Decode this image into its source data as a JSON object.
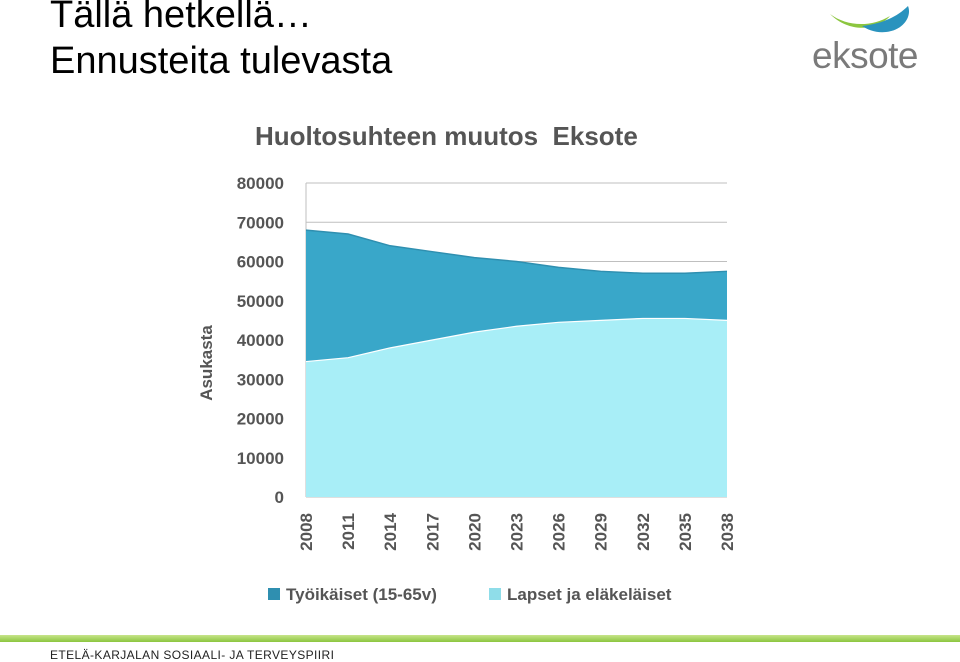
{
  "slide": {
    "title_line1": "Tällä hetkellä…",
    "title_line2": "Ennusteita tulevasta",
    "footer": "ETELÄ-KARJALAN SOSIAALI- JA TERVEYSPIIRI"
  },
  "logo": {
    "text": "eksote",
    "icon": "eksote-wave-logo"
  },
  "colors": {
    "working_age": "#39a7c9",
    "children_elderly": "#a8eef7",
    "footer_bar": "#8cc63f",
    "logo_green": "#8cc63f",
    "logo_blue": "#2a93be"
  },
  "chart_data": {
    "type": "area",
    "stacked": true,
    "title": "Huoltosuhteen muutos  Eksote",
    "ylabel": "Asukasta",
    "xlabel": "",
    "ylim": [
      0,
      80000
    ],
    "yticks": [
      0,
      10000,
      20000,
      30000,
      40000,
      50000,
      60000,
      70000,
      80000
    ],
    "x": [
      "2008",
      "2011",
      "2014",
      "2017",
      "2020",
      "2023",
      "2026",
      "2029",
      "2032",
      "2035",
      "2038"
    ],
    "grid": true,
    "legend_position": "bottom",
    "series": [
      {
        "name": "Lapset ja eläkeläiset",
        "values": [
          34500,
          35500,
          38000,
          40000,
          42000,
          43500,
          44500,
          45000,
          45500,
          45500,
          45000
        ],
        "color": "#a8eef7"
      },
      {
        "name": "Työikäiset (15-65v)",
        "values": [
          33500,
          31500,
          26000,
          22500,
          19000,
          16500,
          14000,
          12500,
          11500,
          11500,
          12500
        ],
        "color": "#39a7c9"
      }
    ],
    "legend": [
      "Työikäiset (15-65v)",
      "Lapset ja eläkeläiset"
    ]
  }
}
